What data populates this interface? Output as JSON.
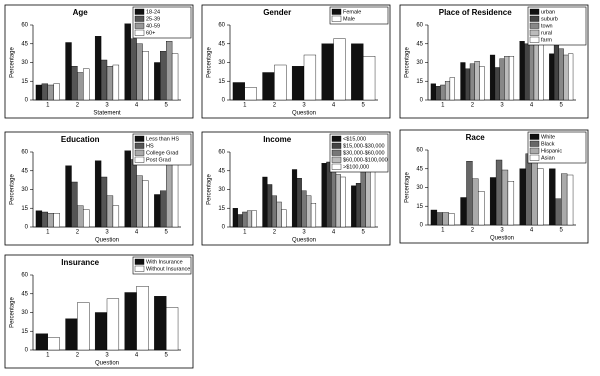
{
  "chart_data": [
    {
      "type": "bar",
      "title": "Age",
      "ylabel": "Percentage",
      "xlabel": "Statement",
      "categories": [
        "1",
        "2",
        "3",
        "4",
        "5"
      ],
      "ylim": [
        0,
        60
      ],
      "yticks": [
        0,
        15,
        30,
        45,
        60
      ],
      "series": [
        {
          "name": "18-24",
          "color": "#111111",
          "values": [
            12,
            46,
            51,
            61,
            30
          ]
        },
        {
          "name": "25-39",
          "color": "#555555",
          "values": [
            13,
            27,
            32,
            49,
            39
          ]
        },
        {
          "name": "40-59",
          "color": "#999999",
          "values": [
            12,
            22,
            27,
            45,
            47
          ]
        },
        {
          "name": "60+",
          "color": "#ffffff",
          "values": [
            13,
            25,
            28,
            39,
            37
          ]
        }
      ]
    },
    {
      "type": "bar",
      "title": "Gender",
      "ylabel": "Percentage",
      "xlabel": "Question",
      "categories": [
        "1",
        "2",
        "3",
        "4",
        "5"
      ],
      "ylim": [
        0,
        60
      ],
      "yticks": [
        0,
        15,
        30,
        45,
        60
      ],
      "series": [
        {
          "name": "Female",
          "color": "#111111",
          "values": [
            14,
            22,
            27,
            45,
            45
          ]
        },
        {
          "name": "Male",
          "color": "#ffffff",
          "values": [
            10,
            28,
            36,
            49,
            35
          ]
        }
      ]
    },
    {
      "type": "bar",
      "title": "Place of Residence",
      "ylabel": "Percentage",
      "categories": [
        "1",
        "2",
        "3",
        "4",
        "5"
      ],
      "ylim": [
        0,
        60
      ],
      "yticks": [
        0,
        15,
        30,
        45,
        60
      ],
      "series": [
        {
          "name": "urban",
          "color": "#111111",
          "values": [
            13,
            30,
            36,
            47,
            37
          ]
        },
        {
          "name": "suburb",
          "color": "#444444",
          "values": [
            11,
            25,
            26,
            45,
            47
          ]
        },
        {
          "name": "town",
          "color": "#888888",
          "values": [
            12,
            29,
            33,
            49,
            41
          ]
        },
        {
          "name": "rural",
          "color": "#bbbbbb",
          "values": [
            15,
            31,
            35,
            51,
            36
          ]
        },
        {
          "name": "farm",
          "color": "#ffffff",
          "values": [
            18,
            27,
            35,
            52,
            37
          ]
        }
      ]
    },
    {
      "type": "bar",
      "title": "Education",
      "ylabel": "Percentage",
      "xlabel": "Question",
      "categories": [
        "1",
        "2",
        "3",
        "4",
        "5"
      ],
      "ylim": [
        0,
        60
      ],
      "yticks": [
        0,
        15,
        30,
        45,
        60
      ],
      "series": [
        {
          "name": "Less than HS",
          "color": "#111111",
          "values": [
            13,
            49,
            53,
            61,
            26
          ]
        },
        {
          "name": "HS",
          "color": "#555555",
          "values": [
            12,
            36,
            40,
            54,
            29
          ]
        },
        {
          "name": "College Grad",
          "color": "#aaaaaa",
          "values": [
            11,
            17,
            25,
            41,
            53
          ]
        },
        {
          "name": "Post Grad",
          "color": "#ffffff",
          "values": [
            11,
            14,
            17,
            37,
            58
          ]
        }
      ]
    },
    {
      "type": "bar",
      "title": "Income",
      "ylabel": "Percentage",
      "xlabel": "Question",
      "categories": [
        "1",
        "2",
        "3",
        "4",
        "5"
      ],
      "ylim": [
        0,
        60
      ],
      "yticks": [
        0,
        15,
        30,
        45,
        60
      ],
      "series": [
        {
          "name": "<$15,000",
          "color": "#111111",
          "values": [
            15,
            40,
            46,
            51,
            33
          ]
        },
        {
          "name": "$15,000-$30,000",
          "color": "#444444",
          "values": [
            10,
            34,
            39,
            52,
            35
          ]
        },
        {
          "name": "$30,000-$60,000",
          "color": "#777777",
          "values": [
            12,
            25,
            29,
            45,
            45
          ]
        },
        {
          "name": "$60,000-$100,000",
          "color": "#bbbbbb",
          "values": [
            13,
            20,
            25,
            42,
            49
          ]
        },
        {
          "name": ">$100,000",
          "color": "#ffffff",
          "values": [
            13,
            14,
            19,
            40,
            55
          ]
        }
      ]
    },
    {
      "type": "bar",
      "title": "Race",
      "ylabel": "Percentage",
      "xlabel": "Question",
      "categories": [
        "1",
        "2",
        "3",
        "4",
        "5"
      ],
      "ylim": [
        0,
        60
      ],
      "yticks": [
        0,
        15,
        30,
        45,
        60
      ],
      "series": [
        {
          "name": "White",
          "color": "#111111",
          "values": [
            12,
            22,
            38,
            45,
            45
          ]
        },
        {
          "name": "Black",
          "color": "#666666",
          "values": [
            10,
            51,
            52,
            57,
            21
          ]
        },
        {
          "name": "Hispanic",
          "color": "#aaaaaa",
          "values": [
            10,
            37,
            44,
            53,
            41
          ]
        },
        {
          "name": "Asian",
          "color": "#ffffff",
          "values": [
            9,
            27,
            35,
            45,
            40
          ]
        }
      ]
    },
    {
      "type": "bar",
      "title": "Insurance",
      "ylabel": "Percentage",
      "xlabel": "Question",
      "categories": [
        "1",
        "2",
        "3",
        "4",
        "5"
      ],
      "ylim": [
        0,
        60
      ],
      "yticks": [
        0,
        15,
        30,
        45,
        60
      ],
      "series": [
        {
          "name": "With Insurance",
          "color": "#111111",
          "values": [
            13,
            25,
            30,
            46,
            43
          ]
        },
        {
          "name": "Without Insurance",
          "color": "#ffffff",
          "values": [
            10,
            38,
            41,
            51,
            34
          ]
        }
      ]
    }
  ]
}
